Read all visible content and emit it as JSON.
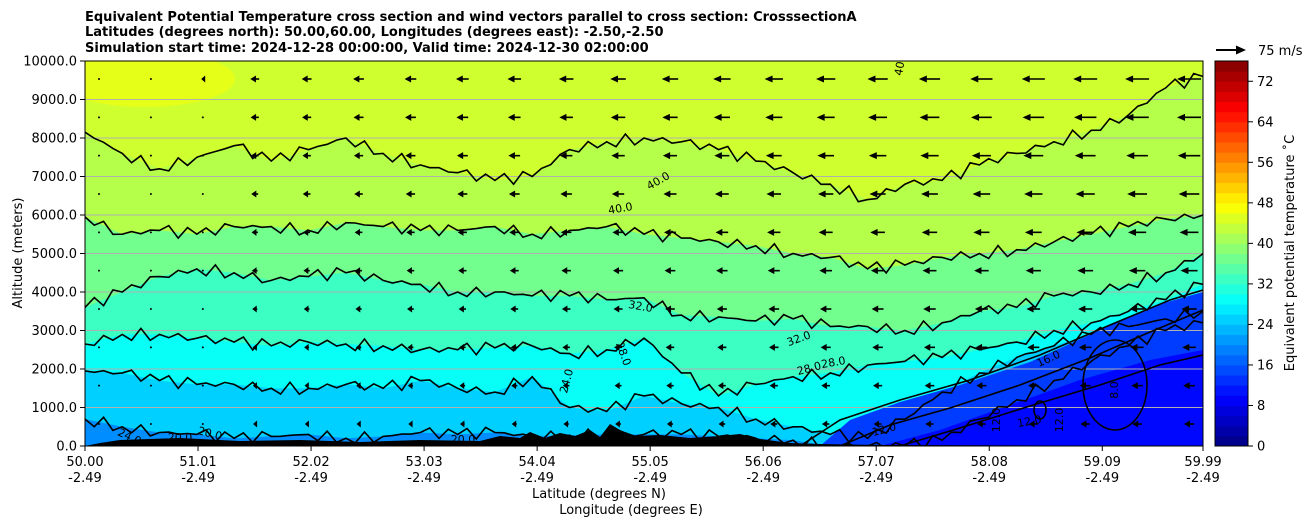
{
  "chart_data": {
    "type": "contourf",
    "title_lines": [
      "Equivalent Potential Temperature cross section and wind vectors parallel to cross section: CrosssectionA",
      "Latitudes (degrees north): 50.00,60.00, Longitudes (degrees east): -2.50,-2.50",
      "Simulation start time: 2024-12-28 00:00:00, Valid time: 2024-12-30 02:00:00"
    ],
    "ylabel": "Altitude (meters)",
    "xlabel_lines": [
      "Latitude (degrees N)",
      "Longitude (degrees E)"
    ],
    "ylim": [
      0,
      10000
    ],
    "xlim": [
      50.0,
      59.99
    ],
    "y_ticks": [
      0,
      1000,
      2000,
      3000,
      4000,
      5000,
      6000,
      7000,
      8000,
      9000,
      10000
    ],
    "y_tick_labels": [
      "0.0",
      "1000.0",
      "2000.0",
      "3000.0",
      "4000.0",
      "5000.0",
      "6000.0",
      "7000.0",
      "8000.0",
      "9000.0",
      "10000.0"
    ],
    "x_ticks": [
      50.0,
      51.01,
      52.02,
      53.03,
      54.04,
      55.05,
      56.06,
      57.07,
      58.08,
      59.09,
      59.99
    ],
    "x_tick_labels": [
      {
        "lat": "50.00",
        "lon": "-2.49"
      },
      {
        "lat": "51.01",
        "lon": "-2.49"
      },
      {
        "lat": "52.02",
        "lon": "-2.49"
      },
      {
        "lat": "53.03",
        "lon": "-2.49"
      },
      {
        "lat": "54.04",
        "lon": "-2.49"
      },
      {
        "lat": "55.05",
        "lon": "-2.49"
      },
      {
        "lat": "56.06",
        "lon": "-2.49"
      },
      {
        "lat": "57.07",
        "lon": "-2.49"
      },
      {
        "lat": "58.08",
        "lon": "-2.49"
      },
      {
        "lat": "59.09",
        "lon": "-2.49"
      },
      {
        "lat": "59.99",
        "lon": "-2.49"
      }
    ],
    "grid": "horizontal",
    "colorbar": {
      "label": "Equivalent potential temperature ˚C",
      "min": 0,
      "max": 76,
      "step": 2,
      "ticks": [
        0,
        8,
        16,
        24,
        32,
        40,
        48,
        56,
        64,
        72
      ]
    },
    "quiver_key": {
      "label": "75 m/s",
      "speed": 75
    },
    "contour_levels": [
      {
        "level": 40,
        "heights": [
          8150,
          7600,
          7200,
          7500,
          7800,
          7400,
          7700,
          8000,
          7600,
          7300,
          7100,
          6900,
          7000,
          7700,
          7900,
          8000,
          7900,
          7700,
          7400,
          7100,
          6800,
          6400,
          6800,
          6900,
          7300,
          7600,
          7900,
          8200,
          8600,
          9300,
          9600
        ]
      },
      {
        "level": 36,
        "heights": [
          5950,
          5500,
          5600,
          5500,
          5700,
          5700,
          5600,
          5800,
          5700,
          5600,
          5600,
          5700,
          5500,
          5600,
          5700,
          5500,
          5400,
          5300,
          5200,
          5000,
          4900,
          4600,
          4700,
          4900,
          5000,
          5100,
          5300,
          5500,
          5700,
          5900,
          6000
        ]
      },
      {
        "level": 32,
        "heights": [
          3600,
          4000,
          4400,
          4600,
          4500,
          4300,
          4400,
          4500,
          4300,
          4200,
          4000,
          4000,
          3900,
          3900,
          3800,
          3850,
          3400,
          3350,
          3250,
          3300,
          3100,
          3100,
          3000,
          3200,
          3500,
          3600,
          3900,
          4000,
          4200,
          4500,
          5000
        ]
      },
      {
        "level": 28,
        "heights": [
          2650,
          2900,
          2900,
          2800,
          2700,
          2600,
          2700,
          2650,
          2600,
          2500,
          2500,
          2550,
          2600,
          2400,
          2500,
          2800,
          1900,
          1300,
          1600,
          1800,
          1900,
          2100,
          2200,
          2300,
          2500,
          2700,
          3000,
          3200,
          3500,
          3800,
          4200
        ]
      },
      {
        "level": 24,
        "heights": [
          1950,
          1900,
          1700,
          1600,
          1600,
          1500,
          1500,
          1600,
          1500,
          1700,
          1500,
          1400,
          1800,
          1000,
          900,
          1300,
          1100,
          1000,
          700,
          500,
          300,
          200,
          700,
          1400,
          1900,
          2300,
          2600,
          2900,
          3100,
          3300,
          3500
        ]
      },
      {
        "level": 16,
        "heights": [
          700,
          500,
          350,
          300,
          200,
          250,
          300,
          200,
          250,
          350,
          300,
          350,
          250,
          280,
          300,
          300,
          300,
          250,
          200,
          150,
          0,
          0,
          0,
          150,
          700,
          1200,
          1700,
          2200,
          2600,
          3000,
          3200
        ]
      }
    ],
    "contour_labels": [
      "40.0",
      "40.0",
      "40.0",
      "32.0",
      "32.0",
      "28.0",
      "28.0",
      "28.0",
      "24.0",
      "24.0",
      "20.0",
      "20.0",
      "20.0",
      "16.0",
      "12.0",
      "12.0",
      "12.0",
      "12.0",
      "8.0"
    ]
  }
}
